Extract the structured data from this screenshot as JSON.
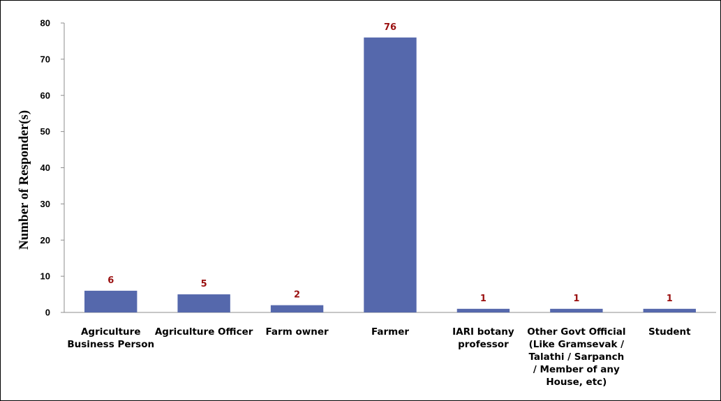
{
  "chart_data": {
    "type": "bar",
    "title": "",
    "xlabel": "",
    "ylabel": "Number of Responder(s)",
    "ylim": [
      0,
      80
    ],
    "yticks": [
      "0",
      "10",
      "20",
      "30",
      "40",
      "50",
      "60",
      "70",
      "80"
    ],
    "grid": false,
    "bar_color": "#5568ac",
    "data_label_color": "#9a1010",
    "categories": [
      [
        "Agriculture",
        "Business Person"
      ],
      [
        "Agriculture Officer"
      ],
      [
        "Farm owner"
      ],
      [
        "Farmer"
      ],
      [
        "IARI botany",
        "professor"
      ],
      [
        "Other Govt Official",
        "(Like Gramsevak /",
        "Talathi / Sarpanch",
        "/ Member of any",
        "House, etc)"
      ],
      [
        "Student"
      ]
    ],
    "values": [
      6,
      5,
      2,
      76,
      1,
      1,
      1
    ],
    "data_labels": [
      "6",
      "5",
      "2",
      "76",
      "1",
      "1",
      "1"
    ]
  }
}
